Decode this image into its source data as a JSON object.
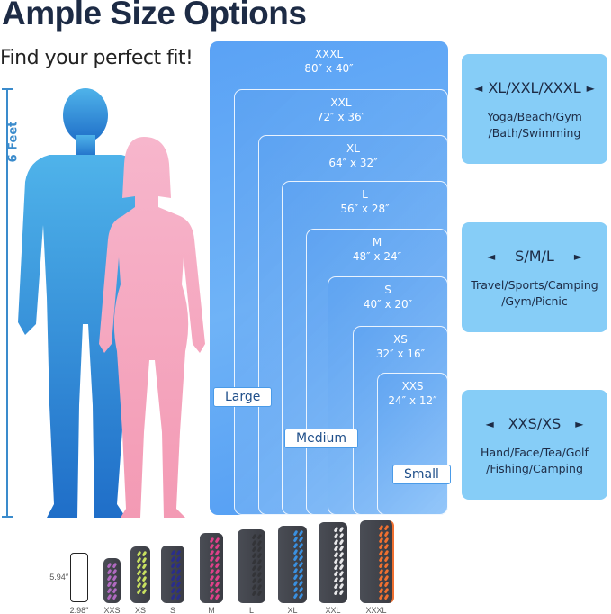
{
  "header": {
    "title": "Ample Size Options",
    "subtitle": "Find your perfect fit!"
  },
  "height_label": "6 Feet",
  "sizes": [
    {
      "name": "XXXL",
      "dims": "80″ x 40″"
    },
    {
      "name": "XXL",
      "dims": "72″ x 36″"
    },
    {
      "name": "XL",
      "dims": "64″ x 32″"
    },
    {
      "name": "L",
      "dims": "56″ x 28″"
    },
    {
      "name": "M",
      "dims": "48″ x 24″"
    },
    {
      "name": "S",
      "dims": "40″ x 20″"
    },
    {
      "name": "XS",
      "dims": "32″ x 16″"
    },
    {
      "name": "XXS",
      "dims": "24″ x 12″"
    }
  ],
  "groups_tags": {
    "large": "Large",
    "medium": "Medium",
    "small": "Small"
  },
  "categories": [
    {
      "heading": "XL/XXL/XXXL",
      "desc1": "Yoga/Beach/Gym",
      "desc2": "/Bath/Swimming"
    },
    {
      "heading": "S/M/L",
      "desc1": "Travel/Sports/Camping",
      "desc2": "/Gym/Picnic"
    },
    {
      "heading": "XXS/XS",
      "desc1": "Hand/Face/Tea/Golf",
      "desc2": "/Fishing/Camping"
    }
  ],
  "phone": {
    "height": "5.94″",
    "width": "2.98″"
  },
  "towels": [
    {
      "label": "XXS",
      "color": "#b06ac0"
    },
    {
      "label": "XS",
      "color": "#c8e060"
    },
    {
      "label": "S",
      "color": "#2a2e8a"
    },
    {
      "label": "M",
      "color": "#e0408a"
    },
    {
      "label": "L",
      "color": "#333438"
    },
    {
      "label": "XL",
      "color": "#3a90e0"
    },
    {
      "label": "XXL",
      "color": "#e8e8ea"
    },
    {
      "label": "XXXL",
      "color": "#f07030"
    }
  ],
  "colors": {
    "title": "#1d2b45",
    "category_box": "#86cdf7",
    "man": "#2f8fe0",
    "woman": "#f6a9c0"
  }
}
